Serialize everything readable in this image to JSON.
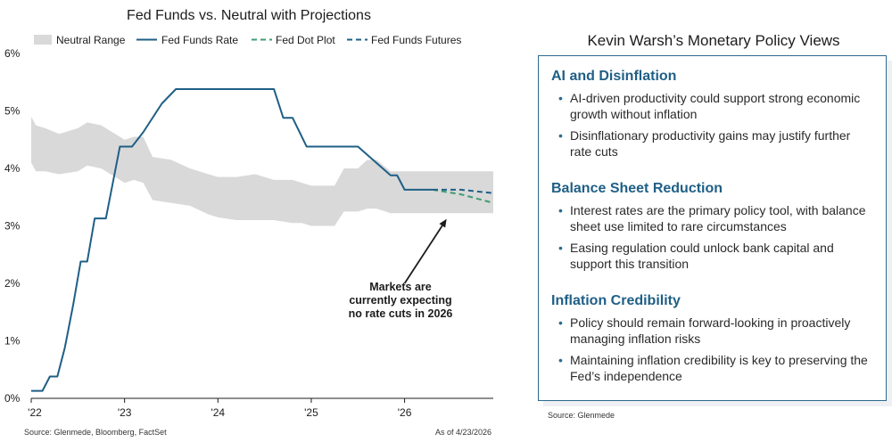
{
  "chart": {
    "title": "Fed Funds vs. Neutral with Projections",
    "legend": {
      "neutral_range": "Neutral Range",
      "fed_funds_rate": "Fed Funds Rate",
      "fed_dot_plot": "Fed Dot Plot",
      "fed_funds_futures": "Fed Funds Futures"
    },
    "annotation": [
      "Markets are",
      "currently expecting",
      "no rate cuts in 2026"
    ],
    "source": "Source: Glenmede, Bloomberg, FactSet",
    "as_of": "As of 4/23/2026"
  },
  "chart_data": {
    "type": "line",
    "title": "Fed Funds vs. Neutral with Projections",
    "xlabel": "",
    "ylabel": "",
    "x_ticks": [
      "'22",
      "'23",
      "'24",
      "'25",
      "'26"
    ],
    "x_tick_values": [
      2022,
      2023,
      2024,
      2025,
      2026
    ],
    "xlim": [
      2022.0,
      2026.95
    ],
    "y_ticks": [
      "0%",
      "1%",
      "2%",
      "3%",
      "4%",
      "5%",
      "6%"
    ],
    "y_tick_values": [
      0,
      1,
      2,
      3,
      4,
      5,
      6
    ],
    "ylim": [
      0,
      6
    ],
    "grid": false,
    "legend_position": "top",
    "series": [
      {
        "name": "Neutral Range",
        "kind": "band",
        "x": [
          2022.0,
          2022.05,
          2022.15,
          2022.3,
          2022.5,
          2022.6,
          2022.75,
          2022.9,
          2023.0,
          2023.1,
          2023.2,
          2023.3,
          2023.5,
          2023.7,
          2023.9,
          2024.0,
          2024.2,
          2024.4,
          2024.6,
          2024.8,
          2024.9,
          2025.0,
          2025.1,
          2025.25,
          2025.35,
          2025.5,
          2025.6,
          2025.7,
          2025.85,
          2026.0,
          2026.3,
          2026.6,
          2026.95
        ],
        "upper": [
          4.9,
          4.75,
          4.7,
          4.6,
          4.7,
          4.8,
          4.75,
          4.6,
          4.5,
          4.55,
          4.55,
          4.2,
          4.15,
          4.0,
          3.9,
          3.85,
          3.85,
          3.9,
          3.8,
          3.8,
          3.75,
          3.7,
          3.7,
          3.7,
          4.0,
          4.0,
          4.15,
          4.15,
          3.95,
          3.95,
          3.95,
          3.95,
          3.95
        ],
        "lower": [
          4.1,
          3.95,
          3.95,
          3.9,
          3.95,
          4.05,
          4.0,
          3.85,
          3.75,
          3.8,
          3.75,
          3.45,
          3.4,
          3.35,
          3.2,
          3.15,
          3.1,
          3.1,
          3.1,
          3.05,
          3.05,
          3.0,
          3.0,
          3.0,
          3.25,
          3.25,
          3.3,
          3.3,
          3.22,
          3.22,
          3.22,
          3.22,
          3.22
        ],
        "color": "#d9d9d9"
      },
      {
        "name": "Fed Funds Rate",
        "kind": "line",
        "x": [
          2022.0,
          2022.12,
          2022.2,
          2022.28,
          2022.36,
          2022.45,
          2022.53,
          2022.6,
          2022.68,
          2022.8,
          2022.95,
          2023.08,
          2023.2,
          2023.3,
          2023.4,
          2023.55,
          2024.0,
          2024.6,
          2024.7,
          2024.8,
          2024.95,
          2025.0,
          2025.5,
          2025.85,
          2025.92,
          2026.0,
          2026.3
        ],
        "y": [
          0.13,
          0.13,
          0.38,
          0.38,
          0.88,
          1.63,
          2.38,
          2.38,
          3.13,
          3.13,
          4.38,
          4.38,
          4.63,
          4.88,
          5.13,
          5.38,
          5.38,
          5.38,
          4.88,
          4.88,
          4.38,
          4.38,
          4.38,
          3.88,
          3.88,
          3.63,
          3.63
        ],
        "color": "#1f5f86"
      },
      {
        "name": "Fed Dot Plot",
        "kind": "dashed",
        "x": [
          2026.3,
          2026.6,
          2026.95
        ],
        "y": [
          3.63,
          3.55,
          3.4
        ],
        "color": "#3f9c74"
      },
      {
        "name": "Fed Funds Futures",
        "kind": "dashed",
        "x": [
          2026.3,
          2026.6,
          2026.95
        ],
        "y": [
          3.63,
          3.63,
          3.57
        ],
        "color": "#1f5f86"
      }
    ],
    "annotations": [
      {
        "text": "Markets are currently expecting no rate cuts in 2026",
        "arrow_from": [
          2026.0,
          2.0
        ],
        "arrow_to": [
          2026.45,
          3.12
        ]
      }
    ]
  },
  "panel": {
    "title": "Kevin Warsh’s Monetary Policy Views",
    "sections": [
      {
        "heading": "AI and Disinflation",
        "bullets": [
          "AI-driven productivity could support strong economic growth without inflation",
          "Disinflationary productivity gains may justify further rate cuts"
        ]
      },
      {
        "heading": "Balance Sheet Reduction",
        "bullets": [
          "Interest rates are the primary policy tool, with balance sheet use limited to rare circumstances",
          "Easing regulation could unlock bank capital and support this transition"
        ]
      },
      {
        "heading": "Inflation Credibility",
        "bullets": [
          "Policy should remain forward-looking in proactively managing inflation risks",
          "Maintaining inflation credibility is key to preserving the Fed’s independence"
        ]
      }
    ],
    "source": "Source: Glenmede"
  }
}
